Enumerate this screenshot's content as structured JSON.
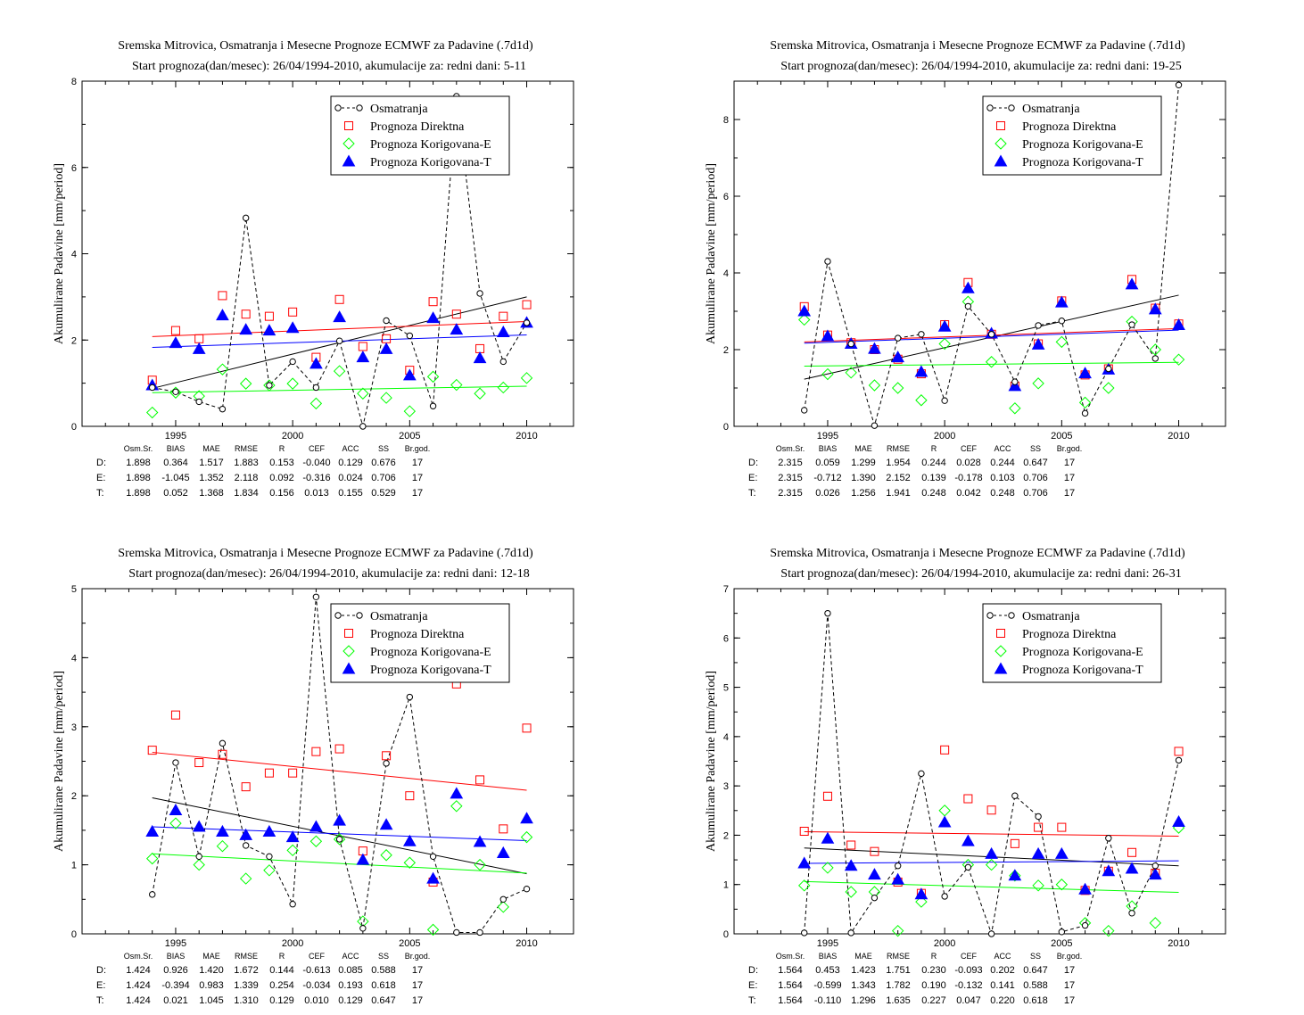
{
  "colors": {
    "obs": "#000000",
    "direct": "#ff0000",
    "corr_e": "#00ff00",
    "corr_t": "#0000ff",
    "row_d": "#ff0000",
    "row_e": "#00bb00",
    "row_t": "#0000ff"
  },
  "legend": [
    "Osmatranja",
    "Prognoza Direktna",
    "Prognoza Korigovana-E",
    "Prognoza Korigovana-T"
  ],
  "stats_header": [
    "Osm.Sr.",
    "BIAS",
    "MAE",
    "RMSE",
    "R",
    "CEF",
    "ACC",
    "SS",
    "Br.god."
  ],
  "chart_data": [
    {
      "type": "scatter",
      "title": "Sremska Mitrovica, Osmatranja i Mesecne Prognoze ECMWF za Padavine (.7d1d)",
      "subtitle": "Start prognoza(dan/mesec): 26/04/1994-2010, akumulacije za: redni dani: 5-11",
      "ylabel": "Akumulirane Padavine [mm/period]",
      "xlim": [
        1991,
        2012
      ],
      "ylim": [
        0,
        8
      ],
      "xticks": [
        1995,
        2000,
        2005,
        2010
      ],
      "yticks": [
        0,
        2,
        4,
        6,
        8
      ],
      "legend_position": "top-right",
      "grid": false,
      "x": [
        1994,
        1995,
        1996,
        1997,
        1998,
        1999,
        2000,
        2001,
        2002,
        2003,
        2004,
        2005,
        2006,
        2007,
        2008,
        2009,
        2010
      ],
      "series": [
        {
          "name": "Osmatranja",
          "values": [
            0.9,
            0.8,
            0.57,
            0.4,
            4.83,
            0.95,
            1.5,
            0.9,
            1.98,
            0.0,
            2.45,
            2.1,
            0.47,
            7.65,
            3.08,
            1.5,
            2.4
          ]
        },
        {
          "name": "Prognoza Direktna",
          "values": [
            1.07,
            2.22,
            2.03,
            3.03,
            2.6,
            2.55,
            2.65,
            1.6,
            2.94,
            1.85,
            2.03,
            1.3,
            2.89,
            2.6,
            1.8,
            2.55,
            2.82
          ]
        },
        {
          "name": "Prognoza Korigovana-E",
          "values": [
            0.32,
            0.78,
            0.7,
            1.32,
            0.99,
            0.95,
            0.99,
            0.53,
            1.28,
            0.76,
            0.66,
            0.35,
            1.15,
            0.96,
            0.76,
            0.9,
            1.12
          ]
        },
        {
          "name": "Prognoza Korigovana-T",
          "values": [
            0.95,
            1.93,
            1.79,
            2.57,
            2.24,
            2.22,
            2.28,
            1.45,
            2.53,
            1.6,
            1.79,
            1.18,
            2.51,
            2.24,
            1.58,
            2.18,
            2.4
          ]
        }
      ],
      "trends": [
        {
          "series": "Osmatranja",
          "y_start": 0.88,
          "y_end": 3.0
        },
        {
          "series": "Prognoza Direktna",
          "y_start": 2.08,
          "y_end": 2.43
        },
        {
          "series": "Prognoza Korigovana-E",
          "y_start": 0.78,
          "y_end": 0.93
        },
        {
          "series": "Prognoza Korigovana-T",
          "y_start": 1.83,
          "y_end": 2.12
        }
      ],
      "stats": [
        {
          "label": "D:",
          "values": [
            "1.898",
            "0.364",
            "1.517",
            "1.883",
            "0.153",
            "-0.040",
            "0.129",
            "0.676",
            "17"
          ]
        },
        {
          "label": "E:",
          "values": [
            "1.898",
            "-1.045",
            "1.352",
            "2.118",
            "0.092",
            "-0.316",
            "0.024",
            "0.706",
            "17"
          ]
        },
        {
          "label": "T:",
          "values": [
            "1.898",
            "0.052",
            "1.368",
            "1.834",
            "0.156",
            "0.013",
            "0.155",
            "0.529",
            "17"
          ]
        }
      ]
    },
    {
      "type": "scatter",
      "title": "Sremska Mitrovica, Osmatranja i Mesecne Prognoze ECMWF za Padavine (.7d1d)",
      "subtitle": "Start prognoza(dan/mesec): 26/04/1994-2010, akumulacije za: redni dani: 19-25",
      "ylabel": "Akumulirane Padavine [mm/period]",
      "xlim": [
        1991,
        2012
      ],
      "ylim": [
        0,
        9
      ],
      "xticks": [
        1995,
        2000,
        2005,
        2010
      ],
      "yticks": [
        0,
        2,
        4,
        6,
        8
      ],
      "legend_position": "top-right",
      "grid": false,
      "x": [
        1994,
        1995,
        1996,
        1997,
        1998,
        1999,
        2000,
        2001,
        2002,
        2003,
        2004,
        2005,
        2006,
        2007,
        2008,
        2009,
        2010
      ],
      "series": [
        {
          "name": "Osmatranja",
          "values": [
            0.42,
            4.3,
            2.15,
            0.02,
            2.3,
            2.4,
            0.67,
            3.13,
            2.4,
            1.16,
            2.63,
            2.75,
            0.34,
            1.5,
            2.65,
            1.77,
            8.9
          ]
        },
        {
          "name": "Prognoza Direktna",
          "values": [
            3.12,
            2.38,
            2.18,
            2.0,
            1.75,
            1.37,
            2.65,
            3.75,
            2.4,
            1.05,
            2.15,
            3.27,
            1.34,
            1.5,
            3.83,
            3.08,
            2.67
          ]
        },
        {
          "name": "Prognoza Korigovana-E",
          "values": [
            2.78,
            1.36,
            1.4,
            1.07,
            1.0,
            0.68,
            2.15,
            3.25,
            1.68,
            0.47,
            1.12,
            2.2,
            0.62,
            1.0,
            2.73,
            2.0,
            1.74
          ]
        },
        {
          "name": "Prognoza Korigovana-T",
          "values": [
            3.0,
            2.35,
            2.15,
            2.02,
            1.8,
            1.42,
            2.6,
            3.6,
            2.42,
            1.05,
            2.13,
            3.23,
            1.38,
            1.48,
            3.7,
            3.05,
            2.64
          ]
        }
      ],
      "trends": [
        {
          "series": "Osmatranja",
          "y_start": 1.23,
          "y_end": 3.42
        },
        {
          "series": "Prognoza Direktna",
          "y_start": 2.2,
          "y_end": 2.55
        },
        {
          "series": "Prognoza Korigovana-E",
          "y_start": 1.57,
          "y_end": 1.67
        },
        {
          "series": "Prognoza Korigovana-T",
          "y_start": 2.17,
          "y_end": 2.51
        }
      ],
      "stats": [
        {
          "label": "D:",
          "values": [
            "2.315",
            "0.059",
            "1.299",
            "1.954",
            "0.244",
            "0.028",
            "0.244",
            "0.647",
            "17"
          ]
        },
        {
          "label": "E:",
          "values": [
            "2.315",
            "-0.712",
            "1.390",
            "2.152",
            "0.139",
            "-0.178",
            "0.103",
            "0.706",
            "17"
          ]
        },
        {
          "label": "T:",
          "values": [
            "2.315",
            "0.026",
            "1.256",
            "1.941",
            "0.248",
            "0.042",
            "0.248",
            "0.706",
            "17"
          ]
        }
      ]
    },
    {
      "type": "scatter",
      "title": "Sremska Mitrovica, Osmatranja i Mesecne Prognoze ECMWF za Padavine (.7d1d)",
      "subtitle": "Start prognoza(dan/mesec): 26/04/1994-2010, akumulacije za: redni dani: 12-18",
      "ylabel": "Akumulirane Padavine [mm/period]",
      "xlim": [
        1991,
        2012
      ],
      "ylim": [
        0,
        5
      ],
      "xticks": [
        1995,
        2000,
        2005,
        2010
      ],
      "yticks": [
        0,
        1,
        2,
        3,
        4,
        5
      ],
      "legend_position": "top-right",
      "grid": false,
      "x": [
        1994,
        1995,
        1996,
        1997,
        1998,
        1999,
        2000,
        2001,
        2002,
        2003,
        2004,
        2005,
        2006,
        2007,
        2008,
        2009,
        2010
      ],
      "series": [
        {
          "name": "Osmatranja",
          "values": [
            0.57,
            2.48,
            1.12,
            2.76,
            1.28,
            1.12,
            0.43,
            4.88,
            1.37,
            0.08,
            2.47,
            3.43,
            1.12,
            0.02,
            0.02,
            0.5,
            0.65
          ]
        },
        {
          "name": "Prognoza Direktna",
          "values": [
            2.66,
            3.17,
            2.48,
            2.6,
            2.13,
            2.33,
            2.33,
            2.64,
            2.68,
            1.2,
            2.58,
            2.0,
            0.75,
            3.62,
            2.23,
            1.52,
            2.98
          ]
        },
        {
          "name": "Prognoza Korigovana-E",
          "values": [
            1.09,
            1.6,
            1.0,
            1.27,
            0.8,
            0.92,
            1.21,
            1.34,
            1.37,
            0.18,
            1.14,
            1.03,
            0.06,
            1.85,
            1.0,
            0.39,
            1.4
          ]
        },
        {
          "name": "Prognoza Korigovana-T",
          "values": [
            1.48,
            1.79,
            1.55,
            1.48,
            1.43,
            1.48,
            1.4,
            1.55,
            1.64,
            1.07,
            1.58,
            1.34,
            0.8,
            2.03,
            1.33,
            1.17,
            1.67
          ]
        }
      ],
      "trends": [
        {
          "series": "Osmatranja",
          "y_start": 1.97,
          "y_end": 0.87
        },
        {
          "series": "Prognoza Direktna",
          "y_start": 2.63,
          "y_end": 2.08
        },
        {
          "series": "Prognoza Korigovana-E",
          "y_start": 1.16,
          "y_end": 0.88
        },
        {
          "series": "Prognoza Korigovana-T",
          "y_start": 1.55,
          "y_end": 1.35
        }
      ],
      "stats": [
        {
          "label": "D:",
          "values": [
            "1.424",
            "0.926",
            "1.420",
            "1.672",
            "0.144",
            "-0.613",
            "0.085",
            "0.588",
            "17"
          ]
        },
        {
          "label": "E:",
          "values": [
            "1.424",
            "-0.394",
            "0.983",
            "1.339",
            "0.254",
            "-0.034",
            "0.193",
            "0.618",
            "17"
          ]
        },
        {
          "label": "T:",
          "values": [
            "1.424",
            "0.021",
            "1.045",
            "1.310",
            "0.129",
            "0.010",
            "0.129",
            "0.647",
            "17"
          ]
        }
      ]
    },
    {
      "type": "scatter",
      "title": "Sremska Mitrovica, Osmatranja i Mesecne Prognoze ECMWF za Padavine (.7d1d)",
      "subtitle": "Start prognoza(dan/mesec): 26/04/1994-2010, akumulacije za: redni dani: 26-31",
      "ylabel": "Akumulirane Padavine [mm/period]",
      "xlim": [
        1991,
        2012
      ],
      "ylim": [
        0,
        7
      ],
      "xticks": [
        1995,
        2000,
        2005,
        2010
      ],
      "yticks": [
        0,
        1,
        2,
        3,
        4,
        5,
        6,
        7
      ],
      "legend_position": "top-right",
      "grid": false,
      "x": [
        1994,
        1995,
        1996,
        1997,
        1998,
        1999,
        2000,
        2001,
        2002,
        2003,
        2004,
        2005,
        2006,
        2007,
        2008,
        2009,
        2010
      ],
      "series": [
        {
          "name": "Osmatranja",
          "values": [
            0.02,
            6.5,
            0.02,
            0.73,
            1.38,
            3.25,
            0.76,
            1.35,
            0.0,
            2.8,
            2.38,
            0.04,
            0.17,
            1.94,
            0.42,
            1.38,
            3.52
          ]
        },
        {
          "name": "Prognoza Direktna",
          "values": [
            2.08,
            2.79,
            1.8,
            1.67,
            1.05,
            0.82,
            3.73,
            2.74,
            2.51,
            1.83,
            2.16,
            2.16,
            0.88,
            1.27,
            1.65,
            1.23,
            3.7
          ]
        },
        {
          "name": "Prognoza Korigovana-E",
          "values": [
            0.98,
            1.34,
            0.85,
            0.85,
            0.06,
            0.65,
            2.5,
            1.4,
            1.4,
            1.18,
            0.98,
            1.0,
            0.22,
            0.06,
            0.56,
            0.22,
            2.15
          ]
        },
        {
          "name": "Prognoza Korigovana-T",
          "values": [
            1.43,
            1.93,
            1.38,
            1.2,
            1.1,
            0.8,
            2.26,
            1.88,
            1.62,
            1.18,
            1.62,
            1.62,
            0.9,
            1.27,
            1.32,
            1.2,
            2.27
          ]
        }
      ],
      "trends": [
        {
          "series": "Osmatranja",
          "y_start": 1.74,
          "y_end": 1.38
        },
        {
          "series": "Prognoza Direktna",
          "y_start": 2.07,
          "y_end": 1.98
        },
        {
          "series": "Prognoza Korigovana-E",
          "y_start": 1.06,
          "y_end": 0.84
        },
        {
          "series": "Prognoza Korigovana-T",
          "y_start": 1.43,
          "y_end": 1.48
        }
      ],
      "stats": [
        {
          "label": "D:",
          "values": [
            "1.564",
            "0.453",
            "1.423",
            "1.751",
            "0.230",
            "-0.093",
            "0.202",
            "0.647",
            "17"
          ]
        },
        {
          "label": "E:",
          "values": [
            "1.564",
            "-0.599",
            "1.343",
            "1.782",
            "0.190",
            "-0.132",
            "0.141",
            "0.588",
            "17"
          ]
        },
        {
          "label": "T:",
          "values": [
            "1.564",
            "-0.110",
            "1.296",
            "1.635",
            "0.227",
            "0.047",
            "0.220",
            "0.618",
            "17"
          ]
        }
      ]
    }
  ]
}
